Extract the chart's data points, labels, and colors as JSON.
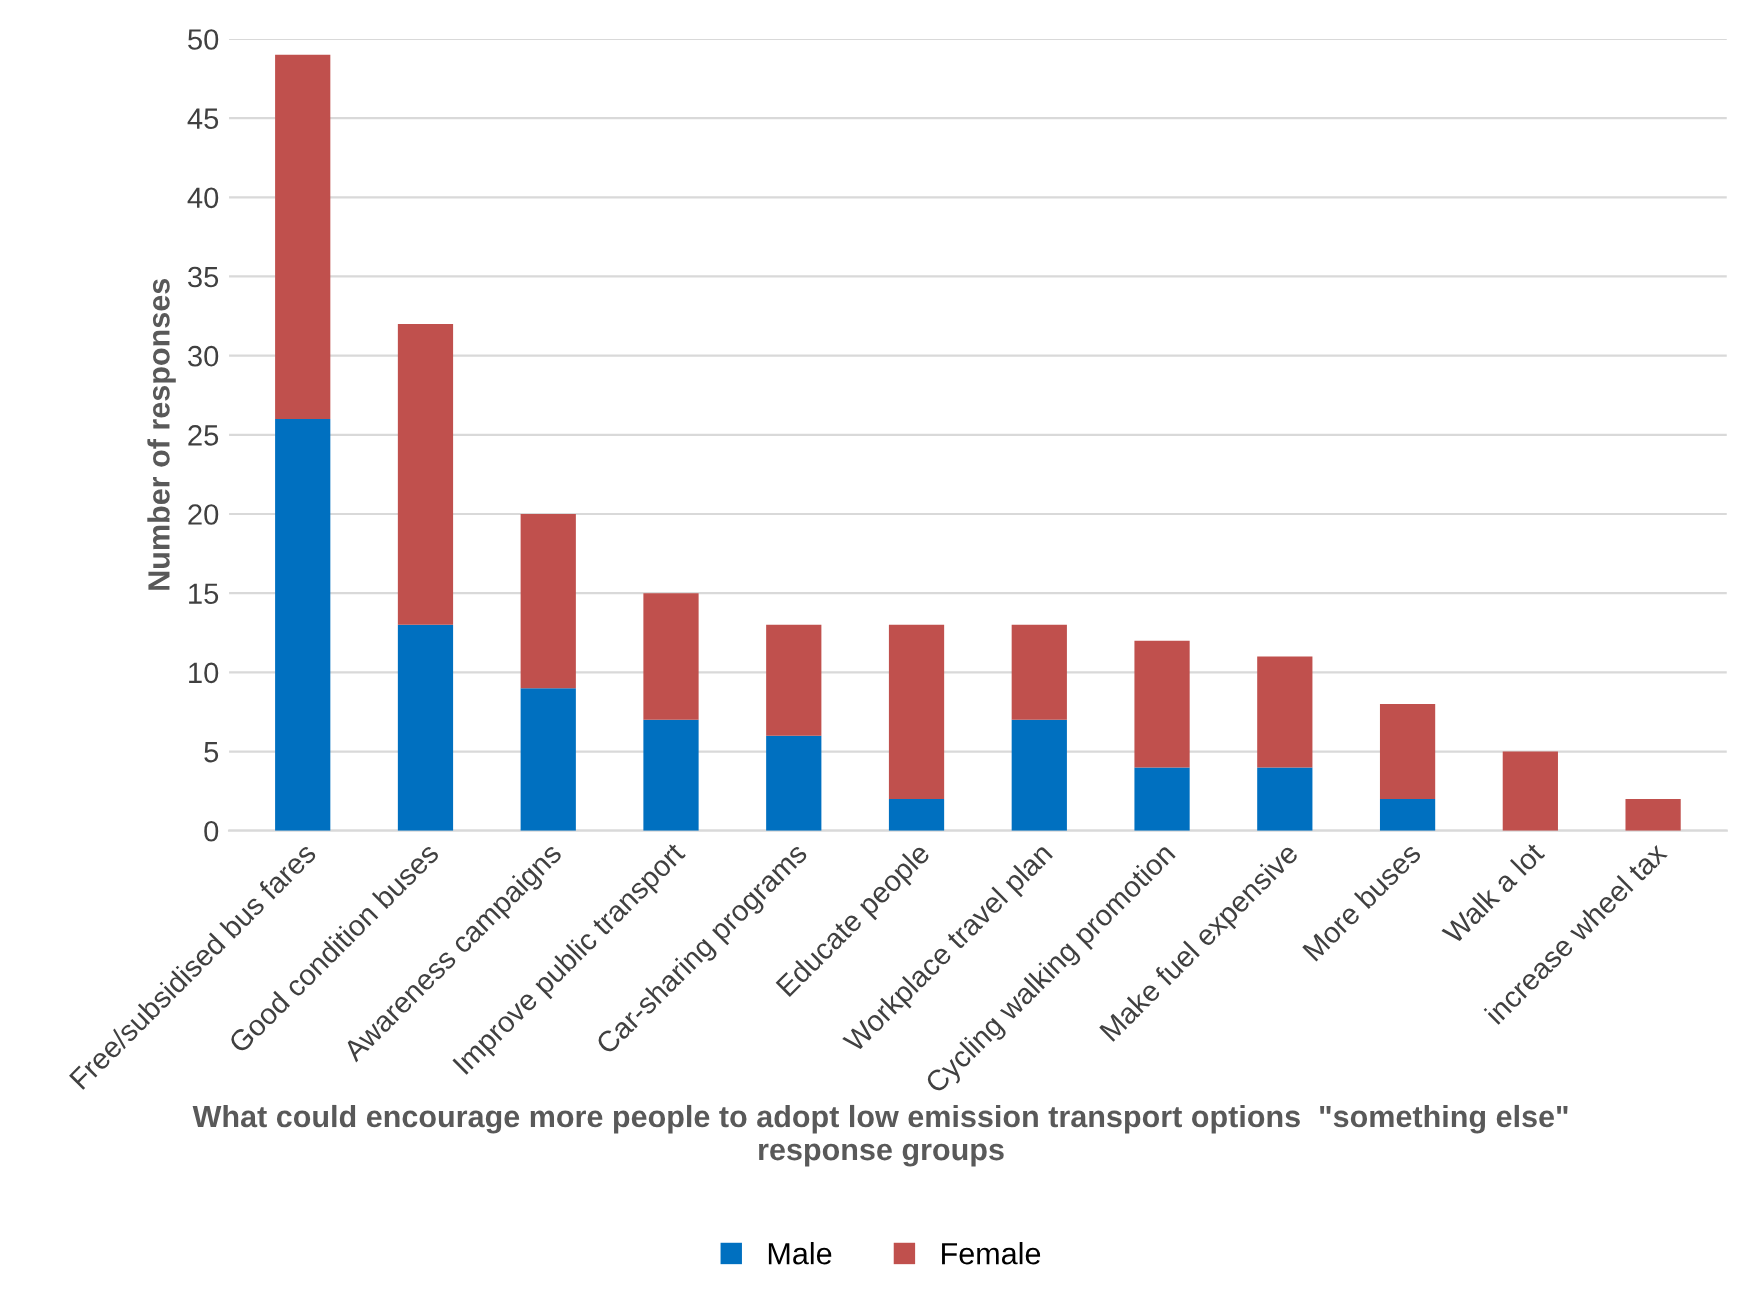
{
  "chart_data": {
    "type": "bar",
    "stacked": true,
    "xlabel": "What could encourage more people to adopt low emission transport options  \"something else\"\nresponse groups",
    "ylabel": "Number of responses",
    "categories": [
      "Free/subsidised bus fares",
      "Good condition buses",
      "Awareness campaigns",
      "Improve public transport",
      "Car-sharing programs",
      "Educate people",
      "Workplace travel plan",
      "Cycling walking promotion",
      "Make fuel expensive",
      "More buses",
      "Walk a lot",
      "increase wheel tax"
    ],
    "series": [
      {
        "name": "Male",
        "color": "#0070c0",
        "values": [
          26,
          13,
          9,
          7,
          6,
          2,
          7,
          4,
          4,
          2,
          0,
          0
        ]
      },
      {
        "name": "Female",
        "color": "#c0504d",
        "values": [
          23,
          19,
          11,
          8,
          7,
          11,
          6,
          8,
          7,
          6,
          5,
          2
        ]
      }
    ],
    "ylim": [
      0,
      50
    ],
    "yticks": [
      0,
      5,
      10,
      15,
      20,
      25,
      30,
      35,
      40,
      45,
      50
    ],
    "grid": "y",
    "legend": "bottom"
  }
}
